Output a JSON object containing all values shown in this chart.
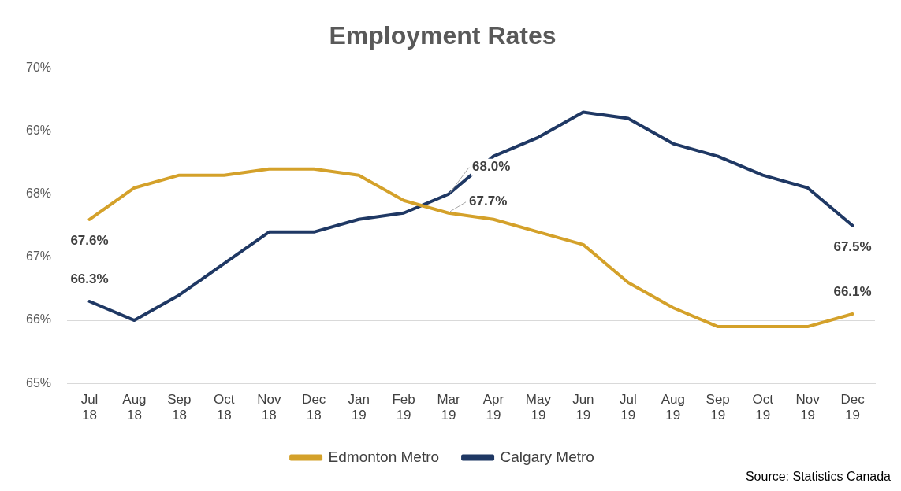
{
  "chart_data": {
    "type": "line",
    "title": "Employment Rates",
    "categories": [
      "Jul 18",
      "Aug 18",
      "Sep 18",
      "Oct 18",
      "Nov 18",
      "Dec 18",
      "Jan 19",
      "Feb 19",
      "Mar 19",
      "Apr 19",
      "May 19",
      "Jun 19",
      "Jul 19",
      "Aug 19",
      "Sep 19",
      "Oct 19",
      "Nov 19",
      "Dec 19"
    ],
    "series": [
      {
        "name": "Edmonton Metro",
        "color": "#d4a12a",
        "values": [
          67.6,
          68.1,
          68.3,
          68.3,
          68.4,
          68.4,
          68.3,
          67.9,
          67.7,
          67.6,
          67.4,
          67.2,
          66.6,
          66.2,
          65.9,
          65.9,
          65.9,
          66.1
        ],
        "value_labels": [
          "67.6%",
          null,
          null,
          null,
          null,
          null,
          null,
          null,
          "67.7%",
          null,
          null,
          null,
          null,
          null,
          null,
          null,
          null,
          "66.1%"
        ]
      },
      {
        "name": "Calgary Metro",
        "color": "#1f3864",
        "values": [
          66.3,
          66.0,
          66.4,
          66.9,
          67.4,
          67.4,
          67.6,
          67.7,
          68.0,
          68.6,
          68.9,
          69.3,
          69.2,
          68.8,
          68.6,
          68.3,
          68.1,
          67.5
        ],
        "value_labels": [
          "66.3%",
          null,
          null,
          null,
          null,
          null,
          null,
          null,
          "68.0%",
          null,
          null,
          null,
          null,
          null,
          null,
          null,
          null,
          "67.5%"
        ]
      }
    ],
    "ylim": [
      65,
      70
    ],
    "yticks": [
      {
        "value": 65,
        "label": "65%"
      },
      {
        "value": 66,
        "label": "66%"
      },
      {
        "value": 67,
        "label": "67%"
      },
      {
        "value": 68,
        "label": "68%"
      },
      {
        "value": 69,
        "label": "69%"
      },
      {
        "value": 70,
        "label": "70%"
      }
    ],
    "grid": "y",
    "legend": "bottom",
    "marker": "none",
    "line_style": "solid",
    "annotations": [
      "Source: Statistics Canada"
    ]
  }
}
